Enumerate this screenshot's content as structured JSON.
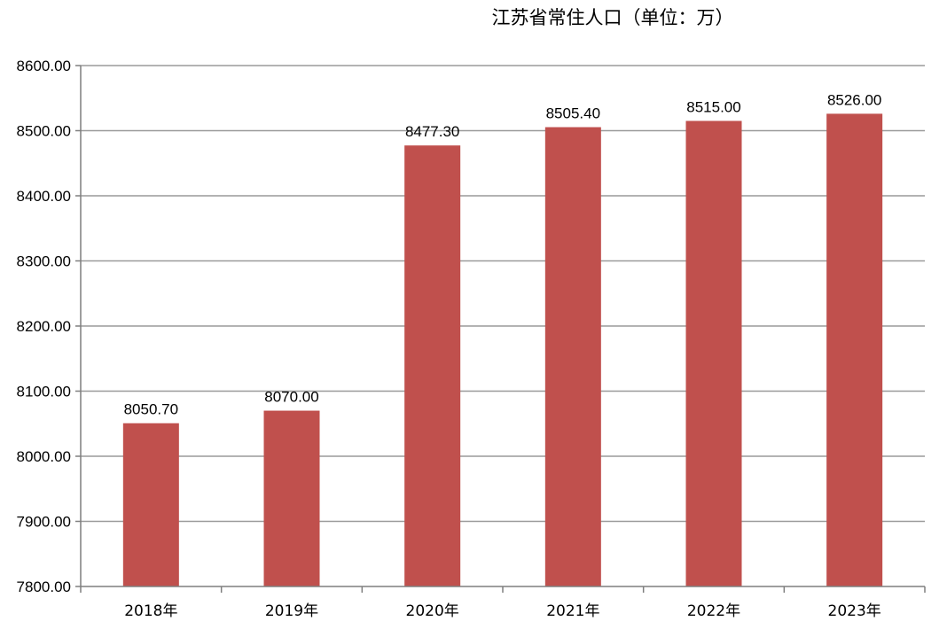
{
  "chart_data": {
    "type": "bar",
    "title": "江苏省常住人口（单位：万）",
    "categories": [
      "2018年",
      "2019年",
      "2020年",
      "2021年",
      "2022年",
      "2023年"
    ],
    "values": [
      8050.7,
      8070.0,
      8477.3,
      8505.4,
      8515.0,
      8526.0
    ],
    "data_labels": [
      "8050.70",
      "8070.00",
      "8477.30",
      "8505.40",
      "8515.00",
      "8526.00"
    ],
    "ylim": [
      7800,
      8600
    ],
    "y_ticks": [
      7800,
      7900,
      8000,
      8100,
      8200,
      8300,
      8400,
      8500,
      8600
    ],
    "y_tick_labels": [
      "7800.00",
      "7900.00",
      "8000.00",
      "8100.00",
      "8200.00",
      "8300.00",
      "8400.00",
      "8500.00",
      "8600.00"
    ],
    "bar_color": "#c0504d",
    "grid": true,
    "legend": "none"
  }
}
